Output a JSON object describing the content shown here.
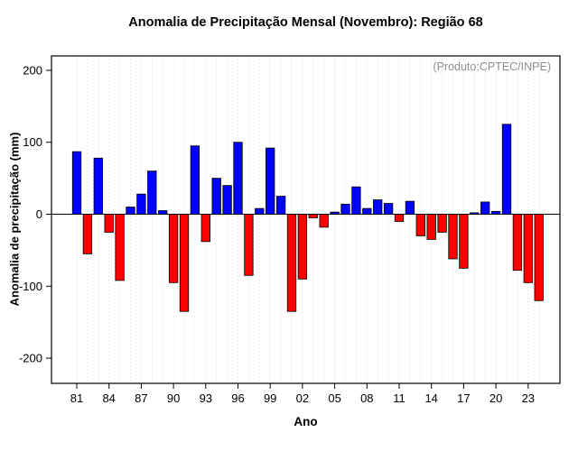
{
  "chart_data": {
    "type": "bar",
    "title": "Anomalia de Precipitação Mensal (Novembro): Região 68",
    "annotation": "(Produto:CPTEC/INPE)",
    "xlabel": "Ano",
    "ylabel": "Anomalia de precipitação (mm)",
    "years": [
      1981,
      1982,
      1983,
      1984,
      1985,
      1986,
      1987,
      1988,
      1989,
      1990,
      1991,
      1992,
      1993,
      1994,
      1995,
      1996,
      1997,
      1998,
      1999,
      2000,
      2001,
      2002,
      2003,
      2004,
      2005,
      2006,
      2007,
      2008,
      2009,
      2010,
      2011,
      2012,
      2013,
      2014,
      2015,
      2016,
      2017,
      2018,
      2019,
      2020,
      2021,
      2022,
      2023,
      2024
    ],
    "values": [
      87,
      -55,
      78,
      -25,
      -92,
      10,
      28,
      60,
      5,
      -95,
      -135,
      95,
      -38,
      50,
      40,
      100,
      -85,
      8,
      92,
      25,
      -135,
      -90,
      -5,
      -18,
      3,
      14,
      38,
      8,
      20,
      15,
      -10,
      18,
      -30,
      -35,
      -25,
      -62,
      -75,
      2,
      17,
      4,
      125,
      -78,
      -95,
      -120
    ],
    "positive_color": "#0000ff",
    "negative_color": "#ff0000",
    "bar_border_color": "#000000",
    "annotation_color": "#8f8f8f",
    "ylim": [
      -235,
      220
    ],
    "yticks": [
      -200,
      -100,
      0,
      100,
      200
    ],
    "ytick_labels": [
      "-200",
      "-100",
      "0",
      "100",
      "200"
    ],
    "xtick_years": [
      1981,
      1984,
      1987,
      1990,
      1993,
      1996,
      1999,
      2002,
      2005,
      2008,
      2011,
      2014,
      2017,
      2020,
      2023
    ],
    "xtick_labels": [
      "81",
      "84",
      "87",
      "90",
      "93",
      "96",
      "99",
      "02",
      "05",
      "08",
      "11",
      "14",
      "17",
      "20",
      "23"
    ],
    "grid": "vertical-dotted",
    "legend": "none"
  }
}
